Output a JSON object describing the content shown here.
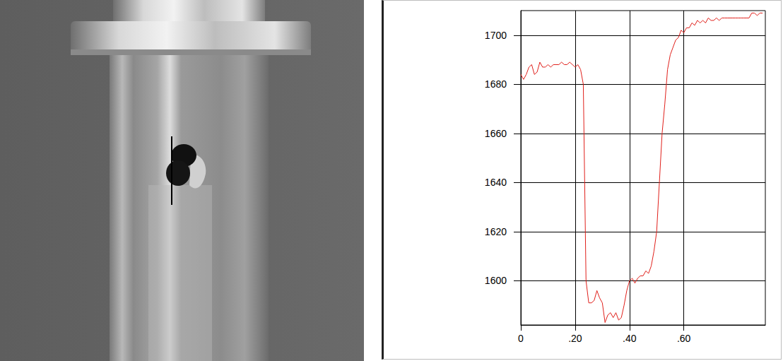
{
  "chart_data": {
    "type": "line",
    "x": [
      0,
      0.01,
      0.02,
      0.03,
      0.04,
      0.05,
      0.06,
      0.07,
      0.08,
      0.09,
      0.1,
      0.11,
      0.12,
      0.13,
      0.14,
      0.15,
      0.16,
      0.17,
      0.18,
      0.19,
      0.2,
      0.21,
      0.22,
      0.23,
      0.24,
      0.25,
      0.26,
      0.27,
      0.28,
      0.29,
      0.3,
      0.31,
      0.32,
      0.33,
      0.34,
      0.35,
      0.36,
      0.37,
      0.38,
      0.39,
      0.4,
      0.41,
      0.42,
      0.43,
      0.44,
      0.45,
      0.46,
      0.47,
      0.48,
      0.49,
      0.5,
      0.51,
      0.52,
      0.53,
      0.54,
      0.55,
      0.56,
      0.57,
      0.58,
      0.59,
      0.6,
      0.61,
      0.62,
      0.63,
      0.64,
      0.65,
      0.66,
      0.67,
      0.68,
      0.69,
      0.7,
      0.71,
      0.72,
      0.73,
      0.74,
      0.75,
      0.76,
      0.77,
      0.78,
      0.79,
      0.8,
      0.81,
      0.82,
      0.83,
      0.84,
      0.85,
      0.86,
      0.87,
      0.88,
      0.89
    ],
    "values": [
      1684,
      1682,
      1684,
      1687,
      1688,
      1684,
      1685,
      1689,
      1687,
      1687,
      1688,
      1687,
      1688,
      1688,
      1688,
      1689,
      1688,
      1688,
      1689,
      1688,
      1687,
      1688,
      1686,
      1680,
      1600,
      1591,
      1591,
      1592,
      1596,
      1593,
      1591,
      1583,
      1586,
      1587,
      1585,
      1587,
      1584,
      1585,
      1590,
      1596,
      1600,
      1601,
      1599,
      1601,
      1602,
      1602,
      1604,
      1603,
      1606,
      1612,
      1620,
      1640,
      1660,
      1672,
      1686,
      1692,
      1695,
      1698,
      1699,
      1702,
      1701,
      1703,
      1703,
      1705,
      1704,
      1706,
      1705,
      1706,
      1705,
      1707,
      1706,
      1706,
      1707,
      1706,
      1707,
      1707,
      1707,
      1707,
      1707,
      1707,
      1707,
      1707,
      1707,
      1707,
      1707,
      1709,
      1709,
      1708,
      1709,
      1709
    ],
    "color": "#e0201b",
    "xlim": [
      0,
      0.9
    ],
    "xticks": [
      0,
      {
        "value": 0.2,
        "label": ".20"
      },
      {
        "value": 0.4,
        "label": ".40"
      },
      {
        "value": 0.6,
        "label": ".60"
      }
    ],
    "ylim": [
      1582,
      1710
    ],
    "yticks": [
      1600,
      1620,
      1640,
      1660,
      1680,
      1700
    ],
    "grid": true
  }
}
